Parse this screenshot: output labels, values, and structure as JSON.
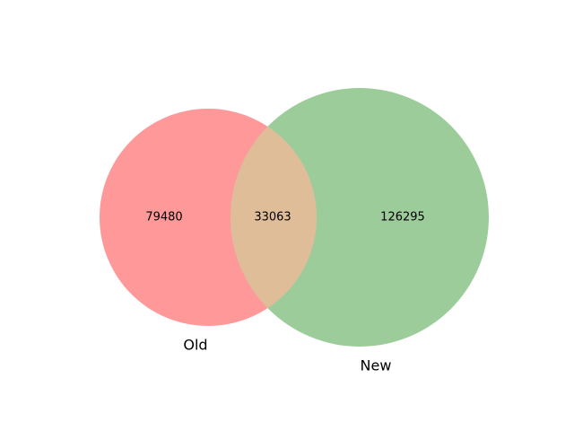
{
  "venn": {
    "sets": [
      {
        "name": "Old",
        "color": "#ff9899"
      },
      {
        "name": "New",
        "color": "#9ccc9a"
      }
    ],
    "intersection_color": "#e0bd99",
    "counts": {
      "old_only": "79480",
      "both": "33063",
      "new_only": "126295"
    }
  }
}
